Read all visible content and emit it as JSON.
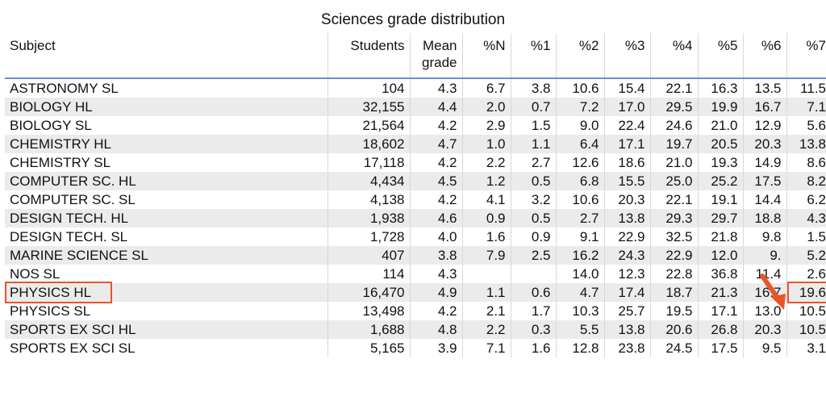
{
  "title": "Sciences grade distribution",
  "columns": {
    "subject": "Subject",
    "students": "Students",
    "mean_line1": "Mean",
    "mean_line2": "grade",
    "pN": "%N",
    "p1": "%1",
    "p2": "%2",
    "p3": "%3",
    "p4": "%4",
    "p5": "%5",
    "p6": "%6",
    "p7": "%7"
  },
  "rows": [
    [
      "ASTRONOMY SL",
      "104",
      "4.3",
      "6.7",
      "3.8",
      "10.6",
      "15.4",
      "22.1",
      "16.3",
      "13.5",
      "11.5"
    ],
    [
      "BIOLOGY HL",
      "32,155",
      "4.4",
      "2.0",
      "0.7",
      "7.2",
      "17.0",
      "29.5",
      "19.9",
      "16.7",
      "7.1"
    ],
    [
      "BIOLOGY SL",
      "21,564",
      "4.2",
      "2.9",
      "1.5",
      "9.0",
      "22.4",
      "24.6",
      "21.0",
      "12.9",
      "5.6"
    ],
    [
      "CHEMISTRY HL",
      "18,602",
      "4.7",
      "1.0",
      "1.1",
      "6.4",
      "17.1",
      "19.7",
      "20.5",
      "20.3",
      "13.8"
    ],
    [
      "CHEMISTRY SL",
      "17,118",
      "4.2",
      "2.2",
      "2.7",
      "12.6",
      "18.6",
      "21.0",
      "19.3",
      "14.9",
      "8.6"
    ],
    [
      "COMPUTER SC. HL",
      "4,434",
      "4.5",
      "1.2",
      "0.5",
      "6.8",
      "15.5",
      "25.0",
      "25.2",
      "17.5",
      "8.2"
    ],
    [
      "COMPUTER SC. SL",
      "4,138",
      "4.2",
      "4.1",
      "3.2",
      "10.6",
      "20.3",
      "22.1",
      "19.1",
      "14.4",
      "6.2"
    ],
    [
      "DESIGN TECH. HL",
      "1,938",
      "4.6",
      "0.9",
      "0.5",
      "2.7",
      "13.8",
      "29.3",
      "29.7",
      "18.8",
      "4.3"
    ],
    [
      "DESIGN TECH. SL",
      "1,728",
      "4.0",
      "1.6",
      "0.9",
      "9.1",
      "22.9",
      "32.5",
      "21.8",
      "9.8",
      "1.5"
    ],
    [
      "MARINE SCIENCE SL",
      "407",
      "3.8",
      "7.9",
      "2.5",
      "16.2",
      "24.3",
      "22.9",
      "12.0",
      "9.",
      "5.2"
    ],
    [
      "NOS SL",
      "114",
      "4.3",
      "",
      "",
      "14.0",
      "12.3",
      "22.8",
      "36.8",
      "11.4",
      "2.6"
    ],
    [
      "PHYSICS HL",
      "16,470",
      "4.9",
      "1.1",
      "0.6",
      "4.7",
      "17.4",
      "18.7",
      "21.3",
      "16.7",
      "19.6"
    ],
    [
      "PHYSICS SL",
      "13,498",
      "4.2",
      "2.1",
      "1.7",
      "10.3",
      "25.7",
      "19.5",
      "17.1",
      "13.0",
      "10.5"
    ],
    [
      "SPORTS EX SCI HL",
      "1,688",
      "4.8",
      "2.2",
      "0.3",
      "5.5",
      "13.8",
      "20.6",
      "26.8",
      "20.3",
      "10.5"
    ],
    [
      "SPORTS EX SCI SL",
      "5,165",
      "3.9",
      "7.1",
      "1.6",
      "12.8",
      "23.8",
      "24.5",
      "17.5",
      "9.5",
      "3.1"
    ]
  ],
  "highlight": {
    "color": "#e8552b",
    "row_label": "PHYSICS HL",
    "cell_value": "19.6"
  }
}
